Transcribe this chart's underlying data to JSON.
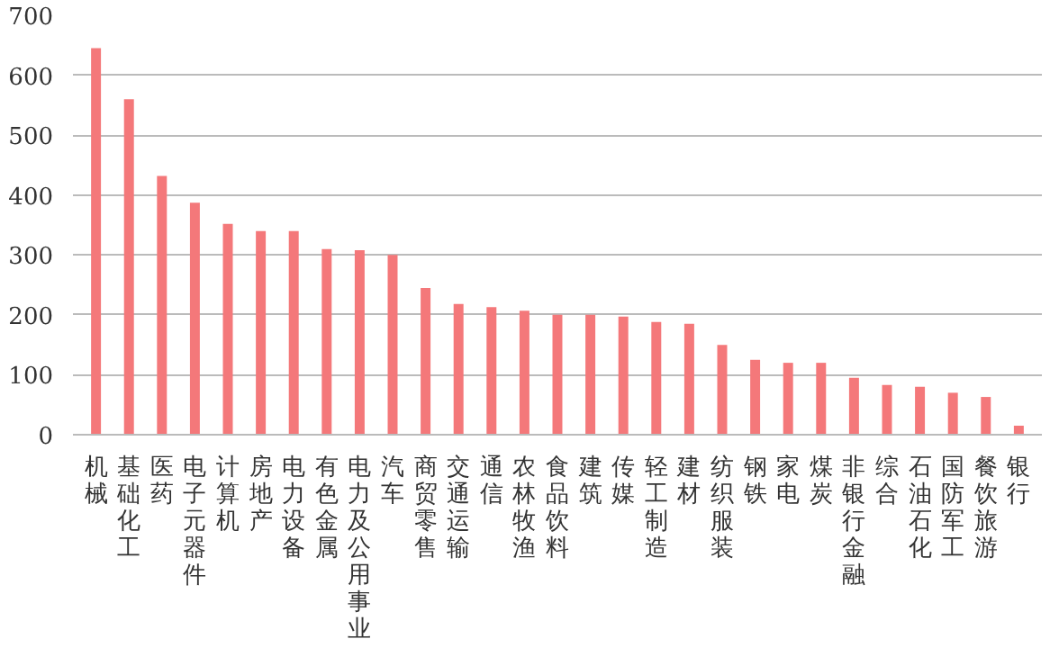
{
  "chart_data": {
    "type": "bar",
    "categories": [
      "机械",
      "基础化工",
      "医药",
      "电子元器件",
      "计算机",
      "房地产",
      "电力设备",
      "有色金属",
      "电力及公用事业",
      "汽车",
      "商贸零售",
      "交通运输",
      "通信",
      "农林牧渔",
      "食品饮料",
      "建筑",
      "传媒",
      "轻工制造",
      "建材",
      "纺织服装",
      "钢铁",
      "家电",
      "煤炭",
      "非银行金融",
      "综合",
      "石油石化",
      "国防军工",
      "餐饮旅游",
      "银行"
    ],
    "values": [
      645,
      560,
      432,
      387,
      352,
      340,
      340,
      310,
      308,
      300,
      245,
      218,
      213,
      207,
      200,
      200,
      197,
      188,
      185,
      150,
      125,
      120,
      120,
      95,
      83,
      80,
      70,
      63,
      15
    ],
    "color": "#f4787a",
    "ylim": [
      0,
      700
    ],
    "yticks": [
      0,
      100,
      200,
      300,
      400,
      500,
      600,
      700
    ],
    "grid": "y"
  }
}
